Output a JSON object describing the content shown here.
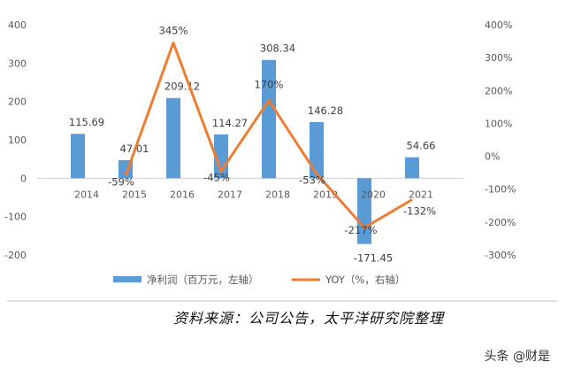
{
  "chart_data": {
    "type": "bar+line",
    "categories": [
      "2014",
      "2015",
      "2016",
      "2017",
      "2018",
      "2019",
      "2020",
      "2021"
    ],
    "series": [
      {
        "name": "净利润（百万元，左轴）",
        "type": "bar",
        "axis": "left",
        "values": [
          115.69,
          47.01,
          209.12,
          114.27,
          308.34,
          146.28,
          -171.45,
          54.66
        ],
        "labels": [
          "115.69",
          "47.01",
          "209.12",
          "114.27",
          "308.34",
          "146.28",
          "-171.45",
          "54.66"
        ]
      },
      {
        "name": "YOY（%，右轴）",
        "type": "line",
        "axis": "right",
        "values": [
          null,
          -59,
          345,
          -45,
          170,
          -53,
          -217,
          -132
        ],
        "labels": [
          "",
          "-59%",
          "345%",
          "-45%",
          "170%",
          "-53%",
          "-217%",
          "-132%"
        ]
      }
    ],
    "y_left": {
      "range": [
        -200,
        400
      ],
      "ticks": [
        "400",
        "300",
        "200",
        "100",
        "0",
        "-100",
        "-200"
      ]
    },
    "y_right": {
      "range": [
        -300,
        400
      ],
      "ticks": [
        "400%",
        "300%",
        "200%",
        "100%",
        "0%",
        "-100%",
        "-200%",
        "-300%"
      ]
    },
    "grid": false,
    "legend": "bottom",
    "colors": {
      "bar": "#5B9BD5",
      "line": "#ED7D31"
    }
  },
  "source": "资料来源：公司公告，太平洋研究院整理",
  "watermark": "头条 @财是"
}
